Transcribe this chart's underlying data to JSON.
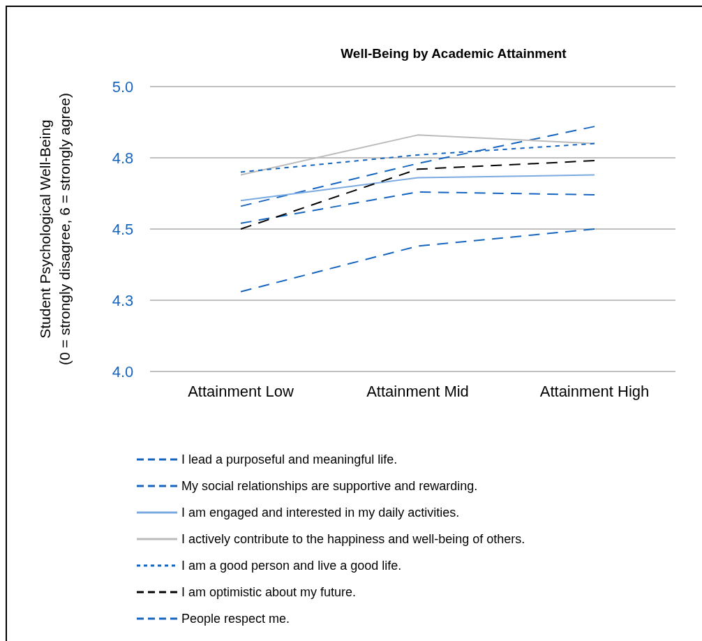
{
  "chart_data": {
    "type": "line",
    "title": "Well-Being by Academic Attainment",
    "ylabel": "Student Psychological Well-Being\n(0 = strongly disagree, 6 = strongly agree)",
    "categories": [
      "Attainment Low",
      "Attainment Mid",
      "Attainment High"
    ],
    "ylim": [
      4.0,
      5.0
    ],
    "yticks": [
      {
        "value": 4.0,
        "label": "4.0"
      },
      {
        "value": 4.25,
        "label": "4.3"
      },
      {
        "value": 4.5,
        "label": "4.5"
      },
      {
        "value": 4.75,
        "label": "4.8"
      },
      {
        "value": 5.0,
        "label": "5.0"
      }
    ],
    "grid": "y",
    "legend": "bottom",
    "marker": "none",
    "series": [
      {
        "name": "I lead a purposeful and meaningful life.",
        "color": "#1565c0",
        "line_style": "dashed",
        "values": [
          4.52,
          4.63,
          4.62
        ]
      },
      {
        "name": "My social relationships are supportive and rewarding.",
        "color": "#1565c0",
        "line_style": "dashed",
        "values": [
          4.58,
          4.73,
          4.86
        ]
      },
      {
        "name": "I am engaged and interested in my daily activities.",
        "color": "#7aaae0",
        "line_style": "solid",
        "values": [
          4.6,
          4.68,
          4.69
        ]
      },
      {
        "name": "I actively contribute to the happiness and well-being of others.",
        "color": "#bbbbbb",
        "line_style": "solid",
        "values": [
          4.69,
          4.83,
          4.8
        ]
      },
      {
        "name": "I am a good person and live a good life.",
        "color": "#1565c0",
        "line_style": "dotted",
        "values": [
          4.7,
          4.76,
          4.8
        ]
      },
      {
        "name": "I am optimistic about my future.",
        "color": "#000000",
        "line_style": "dashed",
        "values": [
          4.5,
          4.71,
          4.74
        ]
      },
      {
        "name": "People respect me.",
        "color": "#1565c0",
        "line_style": "dashed",
        "values": [
          4.28,
          4.44,
          4.5
        ]
      }
    ]
  }
}
